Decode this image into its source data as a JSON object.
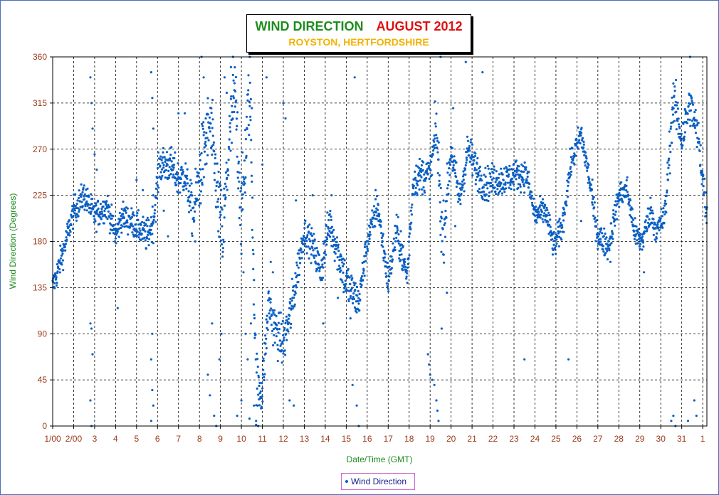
{
  "title": {
    "main": "WIND DIRECTION",
    "month": "AUGUST 2012",
    "subtitle": "ROYSTON, HERTFORDSHIRE"
  },
  "legend": {
    "label": "Wind Direction"
  },
  "colors": {
    "points": "#0a5fc4",
    "axis_text": "#9a3a1a",
    "axis_title": "#1e8c1e",
    "grid": "#000000",
    "frame": "#4a6fc0"
  },
  "chart_data": {
    "type": "scatter",
    "xlabel": "Date/Time (GMT)",
    "ylabel": "Wind Direction (Degrees)",
    "ylim": [
      0,
      360
    ],
    "yticks": [
      0,
      45,
      90,
      135,
      180,
      225,
      270,
      315,
      360
    ],
    "xlim": [
      1,
      32.2
    ],
    "xticks": [
      {
        "day": 1,
        "label": "1/00"
      },
      {
        "day": 2,
        "label": "2/00"
      },
      {
        "day": 3,
        "label": "3"
      },
      {
        "day": 4,
        "label": "4"
      },
      {
        "day": 5,
        "label": "5"
      },
      {
        "day": 6,
        "label": "6"
      },
      {
        "day": 7,
        "label": "7"
      },
      {
        "day": 8,
        "label": "8"
      },
      {
        "day": 9,
        "label": "9"
      },
      {
        "day": 10,
        "label": "10"
      },
      {
        "day": 11,
        "label": "11"
      },
      {
        "day": 12,
        "label": "12"
      },
      {
        "day": 13,
        "label": "13"
      },
      {
        "day": 14,
        "label": "14"
      },
      {
        "day": 15,
        "label": "15"
      },
      {
        "day": 16,
        "label": "16"
      },
      {
        "day": 17,
        "label": "17"
      },
      {
        "day": 18,
        "label": "18"
      },
      {
        "day": 19,
        "label": "19"
      },
      {
        "day": 20,
        "label": "20"
      },
      {
        "day": 21,
        "label": "21"
      },
      {
        "day": 22,
        "label": "22"
      },
      {
        "day": 23,
        "label": "23"
      },
      {
        "day": 24,
        "label": "24"
      },
      {
        "day": 25,
        "label": "25"
      },
      {
        "day": 26,
        "label": "26"
      },
      {
        "day": 27,
        "label": "27"
      },
      {
        "day": 28,
        "label": "28"
      },
      {
        "day": 29,
        "label": "29"
      },
      {
        "day": 30,
        "label": "30"
      },
      {
        "day": 31,
        "label": "31"
      },
      {
        "day": 32,
        "label": "1"
      }
    ],
    "grid": true,
    "legend_position": "bottom-center",
    "series": [
      {
        "name": "Wind Direction",
        "trend": [
          [
            1.0,
            135
          ],
          [
            1.5,
            170
          ],
          [
            2.0,
            210
          ],
          [
            2.5,
            225
          ],
          [
            3.0,
            205
          ],
          [
            3.6,
            215
          ],
          [
            4.0,
            185
          ],
          [
            4.3,
            205
          ],
          [
            4.7,
            200
          ],
          [
            5.0,
            195
          ],
          [
            5.5,
            185
          ],
          [
            5.8,
            200
          ],
          [
            6.1,
            255
          ],
          [
            6.6,
            255
          ],
          [
            7.0,
            240
          ],
          [
            7.3,
            245
          ],
          [
            7.7,
            205
          ],
          [
            8.1,
            255
          ],
          [
            8.5,
            295
          ],
          [
            8.8,
            240
          ],
          [
            9.1,
            180
          ],
          [
            9.4,
            270
          ],
          [
            9.7,
            325
          ],
          [
            10.0,
            200
          ],
          [
            10.4,
            335
          ],
          [
            10.7,
            40
          ],
          [
            11.0,
            35
          ],
          [
            11.3,
            120
          ],
          [
            11.6,
            95
          ],
          [
            12.0,
            80
          ],
          [
            12.4,
            115
          ],
          [
            12.7,
            155
          ],
          [
            13.0,
            190
          ],
          [
            13.4,
            175
          ],
          [
            13.8,
            150
          ],
          [
            14.2,
            200
          ],
          [
            14.6,
            170
          ],
          [
            15.0,
            140
          ],
          [
            15.3,
            130
          ],
          [
            15.6,
            120
          ],
          [
            16.0,
            180
          ],
          [
            16.5,
            215
          ],
          [
            17.0,
            140
          ],
          [
            17.4,
            190
          ],
          [
            17.9,
            145
          ],
          [
            18.2,
            240
          ],
          [
            18.6,
            245
          ],
          [
            19.0,
            245
          ],
          [
            19.3,
            290
          ],
          [
            19.6,
            180
          ],
          [
            20.0,
            270
          ],
          [
            20.4,
            220
          ],
          [
            20.8,
            270
          ],
          [
            21.2,
            250
          ],
          [
            21.6,
            235
          ],
          [
            22.0,
            240
          ],
          [
            22.5,
            240
          ],
          [
            23.0,
            245
          ],
          [
            23.6,
            245
          ],
          [
            24.0,
            205
          ],
          [
            24.5,
            210
          ],
          [
            24.9,
            175
          ],
          [
            25.3,
            195
          ],
          [
            25.7,
            255
          ],
          [
            26.2,
            285
          ],
          [
            26.6,
            240
          ],
          [
            27.0,
            185
          ],
          [
            27.5,
            175
          ],
          [
            28.0,
            225
          ],
          [
            28.4,
            230
          ],
          [
            28.8,
            185
          ],
          [
            29.1,
            180
          ],
          [
            29.5,
            210
          ],
          [
            29.8,
            190
          ],
          [
            30.2,
            205
          ],
          [
            30.6,
            320
          ],
          [
            31.0,
            280
          ],
          [
            31.4,
            315
          ],
          [
            31.8,
            280
          ],
          [
            32.2,
            205
          ]
        ],
        "spread": [
          [
            1.0,
            15
          ],
          [
            3.0,
            15
          ],
          [
            5.0,
            15
          ],
          [
            6.0,
            20
          ],
          [
            7.5,
            20
          ],
          [
            8.0,
            40
          ],
          [
            10.5,
            45
          ],
          [
            11.0,
            25
          ],
          [
            12.5,
            25
          ],
          [
            13.0,
            15
          ],
          [
            15.0,
            25
          ],
          [
            16.0,
            15
          ],
          [
            19.0,
            20
          ],
          [
            19.5,
            35
          ],
          [
            20.0,
            20
          ],
          [
            24.0,
            15
          ],
          [
            30.0,
            15
          ],
          [
            30.5,
            25
          ],
          [
            32.2,
            20
          ]
        ],
        "outliers": [
          [
            2.8,
            340
          ],
          [
            2.85,
            315
          ],
          [
            2.9,
            290
          ],
          [
            2.8,
            100
          ],
          [
            2.85,
            95
          ],
          [
            2.9,
            70
          ],
          [
            2.8,
            25
          ],
          [
            2.85,
            0
          ],
          [
            3.0,
            265
          ],
          [
            3.1,
            250
          ],
          [
            4.1,
            115
          ],
          [
            5.0,
            240
          ],
          [
            5.3,
            230
          ],
          [
            5.7,
            345
          ],
          [
            5.75,
            320
          ],
          [
            5.8,
            290
          ],
          [
            5.8,
            225
          ],
          [
            5.75,
            90
          ],
          [
            5.7,
            65
          ],
          [
            5.75,
            35
          ],
          [
            5.8,
            20
          ],
          [
            5.7,
            5
          ],
          [
            6.3,
            210
          ],
          [
            6.5,
            185
          ],
          [
            7.0,
            305
          ],
          [
            7.3,
            305
          ],
          [
            7.8,
            180
          ],
          [
            8.1,
            360
          ],
          [
            8.2,
            340
          ],
          [
            8.3,
            300
          ],
          [
            8.4,
            50
          ],
          [
            8.5,
            30
          ],
          [
            8.6,
            100
          ],
          [
            8.7,
            10
          ],
          [
            8.8,
            0
          ],
          [
            8.9,
            190
          ],
          [
            8.95,
            65
          ],
          [
            9.05,
            90
          ],
          [
            9.2,
            340
          ],
          [
            9.3,
            325
          ],
          [
            9.5,
            350
          ],
          [
            9.6,
            360
          ],
          [
            9.8,
            10
          ],
          [
            10.0,
            25
          ],
          [
            10.1,
            150
          ],
          [
            10.2,
            90
          ],
          [
            10.3,
            65
          ],
          [
            10.4,
            360
          ],
          [
            10.45,
            100
          ],
          [
            10.5,
            310
          ],
          [
            10.6,
            20
          ],
          [
            10.7,
            5
          ],
          [
            10.8,
            0
          ],
          [
            11.0,
            255
          ],
          [
            11.2,
            340
          ],
          [
            11.4,
            160
          ],
          [
            11.5,
            150
          ],
          [
            12.0,
            315
          ],
          [
            12.1,
            300
          ],
          [
            12.3,
            25
          ],
          [
            12.5,
            20
          ],
          [
            12.6,
            220
          ],
          [
            13.4,
            225
          ],
          [
            13.9,
            100
          ],
          [
            14.3,
            225
          ],
          [
            14.6,
            125
          ],
          [
            15.2,
            105
          ],
          [
            15.3,
            40
          ],
          [
            15.4,
            340
          ],
          [
            15.5,
            20
          ],
          [
            15.6,
            0
          ],
          [
            16.4,
            230
          ],
          [
            17.6,
            190
          ],
          [
            17.8,
            160
          ],
          [
            18.9,
            70
          ],
          [
            18.95,
            60
          ],
          [
            19.0,
            50
          ],
          [
            19.1,
            45
          ],
          [
            19.2,
            40
          ],
          [
            19.3,
            25
          ],
          [
            19.35,
            15
          ],
          [
            19.4,
            5
          ],
          [
            19.5,
            360
          ],
          [
            19.55,
            95
          ],
          [
            19.8,
            130
          ],
          [
            20.1,
            310
          ],
          [
            20.2,
            195
          ],
          [
            20.7,
            355
          ],
          [
            21.5,
            345
          ],
          [
            23.5,
            65
          ],
          [
            25.6,
            65
          ],
          [
            26.2,
            200
          ],
          [
            27.6,
            160
          ],
          [
            29.2,
            150
          ],
          [
            30.5,
            5
          ],
          [
            30.6,
            10
          ],
          [
            30.7,
            0
          ],
          [
            31.3,
            5
          ],
          [
            31.4,
            360
          ],
          [
            31.6,
            25
          ],
          [
            31.7,
            10
          ]
        ]
      }
    ]
  }
}
